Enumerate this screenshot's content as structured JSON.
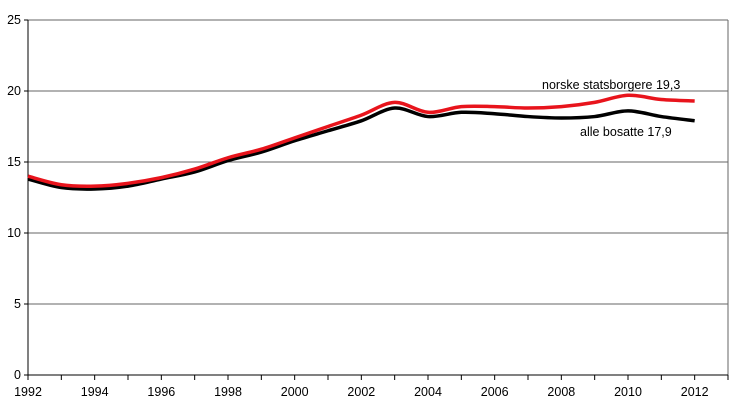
{
  "chart_data": {
    "type": "line",
    "title": "",
    "xlabel": "",
    "ylabel": "",
    "xlim": [
      1992,
      2013
    ],
    "ylim": [
      0,
      25
    ],
    "yticks": [
      0,
      5,
      10,
      15,
      20,
      25
    ],
    "xticks": [
      1992,
      1994,
      1996,
      1998,
      2000,
      2002,
      2004,
      2006,
      2008,
      2010,
      2012
    ],
    "grid": "horizontal",
    "x": [
      1992,
      1993,
      1994,
      1995,
      1996,
      1997,
      1998,
      1999,
      2000,
      2001,
      2002,
      2003,
      2004,
      2005,
      2006,
      2007,
      2008,
      2009,
      2010,
      2011,
      2012
    ],
    "series": [
      {
        "name": "norske statsborgere",
        "label": "norske statsborgere 19,3",
        "color": "#e8141c",
        "values": [
          14.0,
          13.4,
          13.3,
          13.5,
          13.9,
          14.5,
          15.3,
          15.9,
          16.7,
          17.5,
          18.3,
          19.2,
          18.5,
          18.9,
          18.9,
          18.8,
          18.9,
          19.2,
          19.7,
          19.4,
          19.3
        ]
      },
      {
        "name": "alle bosatte",
        "label": "alle bosatte 17,9",
        "color": "#000000",
        "values": [
          13.8,
          13.2,
          13.1,
          13.3,
          13.8,
          14.3,
          15.1,
          15.7,
          16.5,
          17.2,
          17.9,
          18.8,
          18.2,
          18.5,
          18.4,
          18.2,
          18.1,
          18.2,
          18.6,
          18.2,
          17.9
        ]
      }
    ]
  }
}
